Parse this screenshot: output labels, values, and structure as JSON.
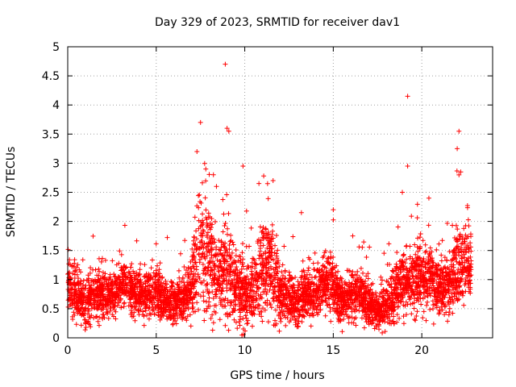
{
  "chart_data": {
    "type": "scatter",
    "title": "Day 329 of 2023, SRMTID for receiver dav1",
    "xlabel": "GPS time / hours",
    "ylabel": "SRMTID / TECUs",
    "xlim": [
      0,
      24
    ],
    "ylim": [
      0,
      5
    ],
    "xticks": [
      0,
      5,
      10,
      15,
      20
    ],
    "yticks": [
      0,
      0.5,
      1,
      1.5,
      2,
      2.5,
      3,
      3.5,
      4,
      4.5,
      5
    ],
    "xtick_labels": [
      "0",
      "5",
      "10",
      "15",
      "20"
    ],
    "ytick_labels": [
      "0",
      "0.5",
      "1",
      "1.5",
      "2",
      "2.5",
      "3",
      "3.5",
      "4",
      "4.5",
      "5"
    ],
    "grid": true,
    "marker": "+",
    "color": "#ff0000",
    "series": [
      {
        "name": "SRMTID",
        "profile": [
          [
            0.0,
            0.95,
            0.45
          ],
          [
            0.5,
            0.7,
            0.35
          ],
          [
            1.0,
            0.6,
            0.3
          ],
          [
            1.5,
            0.75,
            0.35
          ],
          [
            2.0,
            0.8,
            0.35
          ],
          [
            2.5,
            0.7,
            0.3
          ],
          [
            3.0,
            0.95,
            0.35
          ],
          [
            3.5,
            0.85,
            0.35
          ],
          [
            4.0,
            0.75,
            0.35
          ],
          [
            4.5,
            0.7,
            0.3
          ],
          [
            5.0,
            0.8,
            0.35
          ],
          [
            5.5,
            0.65,
            0.3
          ],
          [
            6.0,
            0.6,
            0.3
          ],
          [
            6.5,
            0.65,
            0.3
          ],
          [
            7.0,
            0.9,
            0.5
          ],
          [
            7.5,
            1.6,
            0.9
          ],
          [
            8.0,
            1.3,
            0.8
          ],
          [
            8.5,
            1.0,
            0.6
          ],
          [
            9.0,
            1.3,
            0.8
          ],
          [
            9.5,
            0.8,
            0.55
          ],
          [
            10.0,
            0.7,
            0.5
          ],
          [
            10.5,
            0.9,
            0.5
          ],
          [
            11.0,
            1.1,
            0.6
          ],
          [
            11.5,
            1.2,
            0.7
          ],
          [
            12.0,
            0.75,
            0.4
          ],
          [
            12.5,
            0.7,
            0.35
          ],
          [
            13.0,
            0.6,
            0.3
          ],
          [
            13.5,
            0.75,
            0.35
          ],
          [
            14.0,
            0.8,
            0.35
          ],
          [
            14.5,
            0.95,
            0.4
          ],
          [
            15.0,
            0.85,
            0.4
          ],
          [
            15.5,
            0.65,
            0.3
          ],
          [
            16.0,
            0.7,
            0.35
          ],
          [
            16.5,
            0.75,
            0.35
          ],
          [
            17.0,
            0.6,
            0.3
          ],
          [
            17.5,
            0.45,
            0.25
          ],
          [
            18.0,
            0.55,
            0.3
          ],
          [
            18.5,
            0.8,
            0.4
          ],
          [
            19.0,
            0.95,
            0.45
          ],
          [
            19.5,
            1.0,
            0.45
          ],
          [
            20.0,
            1.05,
            0.45
          ],
          [
            20.5,
            1.0,
            0.45
          ],
          [
            21.0,
            0.85,
            0.4
          ],
          [
            21.5,
            0.9,
            0.4
          ],
          [
            22.0,
            1.2,
            0.6
          ],
          [
            22.5,
            1.3,
            0.5
          ],
          [
            22.8,
            1.3,
            0.4
          ]
        ],
        "peaks": [
          [
            7.5,
            3.7
          ],
          [
            8.9,
            4.7
          ],
          [
            9.0,
            3.6
          ],
          [
            9.1,
            3.55
          ],
          [
            7.3,
            3.2
          ],
          [
            9.9,
            2.95
          ],
          [
            10.8,
            2.65
          ],
          [
            11.6,
            2.7
          ],
          [
            13.2,
            2.15
          ],
          [
            15.0,
            2.2
          ],
          [
            19.2,
            4.15
          ],
          [
            19.2,
            2.95
          ],
          [
            18.9,
            2.5
          ],
          [
            20.4,
            2.4
          ],
          [
            22.1,
            3.55
          ],
          [
            22.0,
            3.25
          ],
          [
            22.2,
            2.85
          ],
          [
            22.1,
            2.8
          ],
          [
            7.8,
            2.9
          ],
          [
            8.4,
            2.6
          ],
          [
            16.1,
            1.75
          ]
        ],
        "point_count": 4500
      }
    ]
  }
}
